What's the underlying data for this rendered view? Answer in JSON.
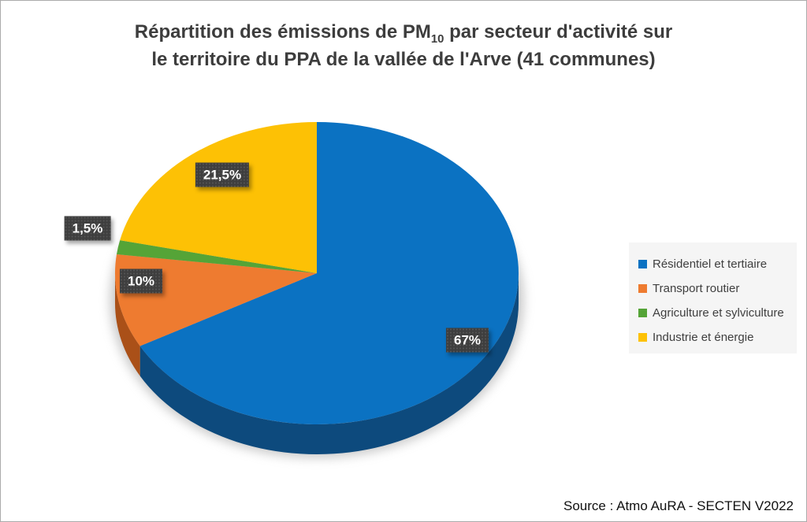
{
  "title": {
    "line1_prefix": "Répartition des émissions de PM",
    "line1_sub": "10",
    "line1_suffix": " par secteur d'activité sur",
    "line2": "le territoire du PPA de la vallée de l'Arve (41 communes)"
  },
  "source": "Source : Atmo AuRA - SECTEN V2022",
  "chart_data": {
    "type": "pie",
    "style": "3d-exploded-none",
    "title": "Répartition des émissions de PM10 par secteur d'activité sur le territoire du PPA de la vallée de l'Arve (41 communes)",
    "unit": "%",
    "start_angle_deg": 0,
    "direction": "clockwise",
    "legend_position": "right",
    "source": "Source : Atmo AuRA - SECTEN V2022",
    "series": [
      {
        "label": "Résidentiel et tertiaire",
        "value": 67,
        "display": "67%",
        "color": "#0b72c2",
        "side_color": "#0d4a7d"
      },
      {
        "label": "Transport routier",
        "value": 10,
        "display": "10%",
        "color": "#ee7b30",
        "side_color": "#aa5018"
      },
      {
        "label": "Agriculture et sylviculture",
        "value": 1.5,
        "display": "1,5%",
        "color": "#55a437",
        "side_color": "#3a7124"
      },
      {
        "label": "Industrie et énergie",
        "value": 21.5,
        "display": "21,5%",
        "color": "#fdc105",
        "side_color": "#b08600"
      }
    ]
  }
}
